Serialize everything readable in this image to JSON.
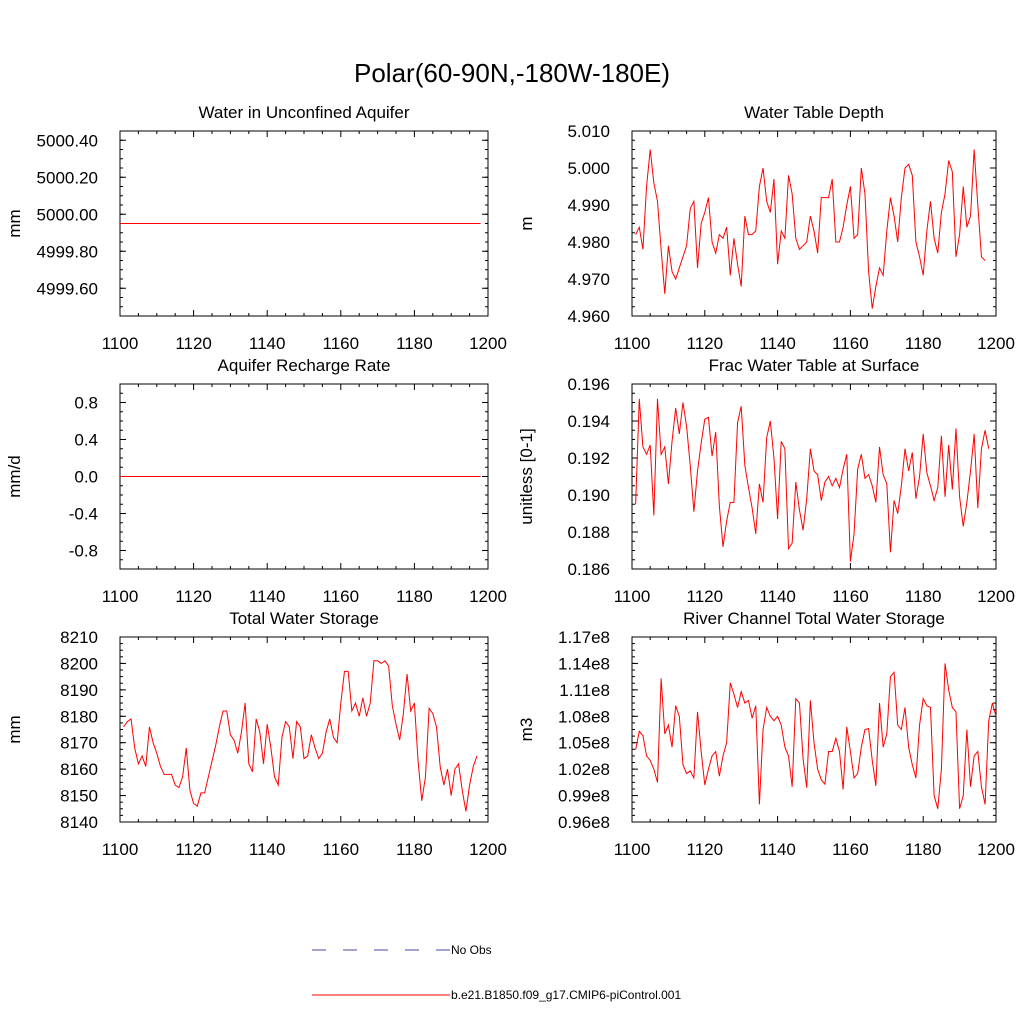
{
  "figure_title": "Polar(60-90N,-180W-180E)",
  "colors": {
    "model_line": "#ff0000",
    "obs_line": "#4a4aa8",
    "axis": "#000000"
  },
  "legend": {
    "items": [
      {
        "label": "No Obs",
        "style": "dashed",
        "color": "#4a4aa8"
      },
      {
        "label": "b.e21.B1850.f09_g17.CMIP6-piControl.001",
        "style": "solid",
        "color": "#ff0000"
      }
    ]
  },
  "chart_data": [
    {
      "type": "line",
      "title": "Water in Unconfined Aquifer",
      "xlabel": "",
      "ylabel": "mm",
      "xlim": [
        1100,
        1200
      ],
      "ylim": [
        4999.45,
        5000.45
      ],
      "xticks": [
        1100,
        1120,
        1140,
        1160,
        1180,
        1200
      ],
      "xtick_labels": [
        "1100",
        "1120",
        "1140",
        "1160",
        "1180",
        "1200"
      ],
      "yticks": [
        4999.6,
        4999.8,
        5000.0,
        5000.2,
        5000.4
      ],
      "ytick_labels": [
        "4999.60",
        "4999.80",
        "5000.00",
        "5000.20",
        "5000.40"
      ],
      "x_start": 1100,
      "x_step": 1,
      "series": [
        {
          "name": "b.e21.B1850.f09_g17.CMIP6-piControl.001",
          "values": [
            4999.95,
            4999.95
          ]
        }
      ],
      "series_x": [
        1100,
        1198
      ]
    },
    {
      "type": "line",
      "title": "Water Table Depth",
      "xlabel": "",
      "ylabel": "m",
      "xlim": [
        1100,
        1200
      ],
      "ylim": [
        4.96,
        5.01
      ],
      "xticks": [
        1100,
        1120,
        1140,
        1160,
        1180,
        1200
      ],
      "xtick_labels": [
        "1100",
        "1120",
        "1140",
        "1160",
        "1180",
        "1200"
      ],
      "yticks": [
        4.96,
        4.97,
        4.98,
        4.99,
        5.0,
        5.01
      ],
      "ytick_labels": [
        "4.960",
        "4.970",
        "4.980",
        "4.990",
        "5.000",
        "5.010"
      ],
      "x_start": 1101,
      "x_step": 1,
      "series": [
        {
          "name": "b.e21.B1850.f09_g17.CMIP6-piControl.001",
          "values": [
            4.982,
            4.984,
            4.978,
            4.995,
            5.005,
            4.996,
            4.991,
            4.978,
            4.966,
            4.979,
            4.972,
            4.97,
            4.973,
            4.976,
            4.979,
            4.989,
            4.991,
            4.973,
            4.985,
            4.988,
            4.992,
            4.98,
            4.977,
            4.982,
            4.981,
            4.984,
            4.971,
            4.981,
            4.974,
            4.968,
            4.987,
            4.982,
            4.982,
            4.983,
            4.995,
            5.0,
            4.991,
            4.988,
            4.997,
            4.974,
            4.983,
            4.981,
            4.998,
            4.993,
            4.981,
            4.978,
            4.979,
            4.98,
            4.987,
            4.983,
            4.977,
            4.992,
            4.992,
            4.992,
            4.997,
            4.98,
            4.98,
            4.984,
            4.99,
            4.995,
            4.981,
            4.982,
            5.0,
            4.993,
            4.972,
            4.962,
            4.968,
            4.973,
            4.971,
            4.983,
            4.992,
            4.987,
            4.98,
            4.992,
            5.0,
            5.001,
            4.998,
            4.98,
            4.976,
            4.971,
            4.983,
            4.991,
            4.981,
            4.977,
            4.988,
            4.993,
            5.002,
            4.999,
            4.976,
            4.982,
            4.995,
            4.984,
            4.987,
            5.005,
            4.99,
            4.976,
            4.975
          ]
        }
      ]
    },
    {
      "type": "line",
      "title": "Aquifer Recharge Rate",
      "xlabel": "",
      "ylabel": "mm/d",
      "xlim": [
        1100,
        1200
      ],
      "ylim": [
        -1.0,
        1.0
      ],
      "xticks": [
        1100,
        1120,
        1140,
        1160,
        1180,
        1200
      ],
      "xtick_labels": [
        "1100",
        "1120",
        "1140",
        "1160",
        "1180",
        "1200"
      ],
      "yticks": [
        -0.8,
        -0.4,
        0.0,
        0.4,
        0.8
      ],
      "ytick_labels": [
        "-0.8",
        "-0.4",
        "0.0",
        "0.4",
        "0.8"
      ],
      "x_start": 1100,
      "x_step": 1,
      "series": [
        {
          "name": "b.e21.B1850.f09_g17.CMIP6-piControl.001",
          "values": [
            0.0,
            0.0
          ]
        }
      ],
      "series_x": [
        1100,
        1198
      ]
    },
    {
      "type": "line",
      "title": "Frac Water Table at Surface",
      "xlabel": "",
      "ylabel": "unitless [0-1]",
      "xlim": [
        1100,
        1200
      ],
      "ylim": [
        0.186,
        0.196
      ],
      "xticks": [
        1100,
        1120,
        1140,
        1160,
        1180,
        1200
      ],
      "xtick_labels": [
        "1100",
        "1120",
        "1140",
        "1160",
        "1180",
        "1200"
      ],
      "yticks": [
        0.186,
        0.188,
        0.19,
        0.192,
        0.194,
        0.196
      ],
      "ytick_labels": [
        "0.186",
        "0.188",
        "0.190",
        "0.192",
        "0.194",
        "0.196"
      ],
      "x_start": 1101,
      "x_step": 1,
      "series": [
        {
          "name": "b.e21.B1850.f09_g17.CMIP6-piControl.001",
          "values": [
            0.1895,
            0.1952,
            0.1926,
            0.1922,
            0.1927,
            0.1889,
            0.1952,
            0.1922,
            0.1926,
            0.1906,
            0.1929,
            0.1947,
            0.1933,
            0.195,
            0.1937,
            0.1916,
            0.1891,
            0.1913,
            0.1928,
            0.1941,
            0.1942,
            0.1921,
            0.1934,
            0.1894,
            0.1872,
            0.1886,
            0.1896,
            0.1896,
            0.1939,
            0.1948,
            0.1916,
            0.1904,
            0.1893,
            0.1879,
            0.1906,
            0.1896,
            0.1931,
            0.194,
            0.192,
            0.1887,
            0.1929,
            0.1925,
            0.1871,
            0.1874,
            0.1907,
            0.1892,
            0.1881,
            0.1898,
            0.1925,
            0.1913,
            0.1911,
            0.1897,
            0.1907,
            0.191,
            0.1905,
            0.1909,
            0.1904,
            0.1914,
            0.1922,
            0.1864,
            0.1879,
            0.1914,
            0.1922,
            0.1909,
            0.1911,
            0.1905,
            0.1896,
            0.1926,
            0.1911,
            0.1906,
            0.1869,
            0.1897,
            0.189,
            0.1905,
            0.1925,
            0.1913,
            0.1923,
            0.1898,
            0.191,
            0.1933,
            0.1912,
            0.1905,
            0.1897,
            0.1904,
            0.1932,
            0.1899,
            0.1927,
            0.1903,
            0.1936,
            0.1899,
            0.1883,
            0.1896,
            0.1913,
            0.1933,
            0.1893,
            0.1925,
            0.1935,
            0.1925
          ]
        }
      ]
    },
    {
      "type": "line",
      "title": "Total Water Storage",
      "xlabel": "",
      "ylabel": "mm",
      "xlim": [
        1100,
        1200
      ],
      "ylim": [
        8140,
        8210
      ],
      "xticks": [
        1100,
        1120,
        1140,
        1160,
        1180,
        1200
      ],
      "xtick_labels": [
        "1100",
        "1120",
        "1140",
        "1160",
        "1180",
        "1200"
      ],
      "yticks": [
        8140,
        8150,
        8160,
        8170,
        8180,
        8190,
        8200,
        8210
      ],
      "ytick_labels": [
        "8140",
        "8150",
        "8160",
        "8170",
        "8180",
        "8190",
        "8200",
        "8210"
      ],
      "x_start": 1101,
      "x_step": 1,
      "series": [
        {
          "name": "b.e21.B1850.f09_g17.CMIP6-piControl.001",
          "values": [
            8176,
            8178,
            8179,
            8168,
            8162,
            8165,
            8161,
            8176,
            8170,
            8166,
            8161,
            8158,
            8158,
            8158,
            8154,
            8153,
            8157,
            8168,
            8152,
            8147,
            8146,
            8151,
            8151,
            8157,
            8163,
            8169,
            8176,
            8182,
            8182,
            8173,
            8171,
            8166,
            8174,
            8185,
            8162,
            8159,
            8179,
            8174,
            8162,
            8177,
            8168,
            8157,
            8154,
            8172,
            8178,
            8176,
            8164,
            8178,
            8176,
            8164,
            8165,
            8173,
            8168,
            8164,
            8166,
            8174,
            8179,
            8172,
            8170,
            8185,
            8197,
            8197,
            8182,
            8185,
            8180,
            8187,
            8180,
            8185,
            8201,
            8201,
            8200,
            8201,
            8199,
            8184,
            8177,
            8171,
            8181,
            8196,
            8182,
            8185,
            8163,
            8148,
            8157,
            8183,
            8181,
            8176,
            8161,
            8154,
            8160,
            8150,
            8160,
            8162,
            8152,
            8144,
            8154,
            8161,
            8165
          ]
        }
      ]
    },
    {
      "type": "line",
      "title": "River Channel Total Water Storage",
      "xlabel": "",
      "ylabel": "m3",
      "xlim": [
        1100,
        1200
      ],
      "ylim": [
        96000000.0,
        117000000.0
      ],
      "xticks": [
        1100,
        1120,
        1140,
        1160,
        1180,
        1200
      ],
      "xtick_labels": [
        "1100",
        "1120",
        "1140",
        "1160",
        "1180",
        "1200"
      ],
      "yticks": [
        96000000.0,
        99000000.0,
        102000000.0,
        105000000.0,
        108000000.0,
        111000000.0,
        114000000.0,
        117000000.0
      ],
      "ytick_labels": [
        "0.96e8",
        "0.99e8",
        "1.02e8",
        "1.05e8",
        "1.08e8",
        "1.11e8",
        "1.14e8",
        "1.17e8"
      ],
      "x_start": 1101,
      "x_step": 1,
      "series": [
        {
          "name": "b.e21.B1850.f09_g17.CMIP6-piControl.001",
          "values": [
            104200000.0,
            106300000.0,
            105800000.0,
            103500000.0,
            103000000.0,
            102000000.0,
            100500000.0,
            112300000.0,
            106000000.0,
            107000000.0,
            104500000.0,
            109200000.0,
            108000000.0,
            102500000.0,
            101500000.0,
            101800000.0,
            101000000.0,
            108500000.0,
            104000000.0,
            100200000.0,
            102000000.0,
            103500000.0,
            104000000.0,
            101200000.0,
            103500000.0,
            105000000.0,
            111800000.0,
            110500000.0,
            109000000.0,
            110800000.0,
            109500000.0,
            109800000.0,
            107800000.0,
            109200000.0,
            98000000.0,
            106500000.0,
            109000000.0,
            108000000.0,
            107500000.0,
            108000000.0,
            107000000.0,
            104500000.0,
            103500000.0,
            100000000.0,
            110000000.0,
            109500000.0,
            103200000.0,
            99900000.0,
            109800000.0,
            105000000.0,
            102000000.0,
            100800000.0,
            100300000.0,
            104000000.0,
            104000000.0,
            105500000.0,
            104000000.0,
            99700000.0,
            106800000.0,
            104000000.0,
            101000000.0,
            101500000.0,
            104500000.0,
            106500000.0,
            106600000.0,
            103000000.0,
            100100000.0,
            109500000.0,
            104500000.0,
            106000000.0,
            112500000.0,
            113000000.0,
            107000000.0,
            106500000.0,
            109000000.0,
            104500000.0,
            102500000.0,
            101000000.0,
            107000000.0,
            110000000.0,
            109200000.0,
            109000000.0,
            99000000.0,
            97500000.0,
            102000000.0,
            114000000.0,
            111000000.0,
            109000000.0,
            108500000.0,
            97500000.0,
            99000000.0,
            106500000.0,
            100000000.0,
            103500000.0,
            104000000.0,
            100000000.0,
            98000000.0,
            107500000.0,
            109500000.0,
            108000000.0
          ]
        }
      ]
    }
  ]
}
